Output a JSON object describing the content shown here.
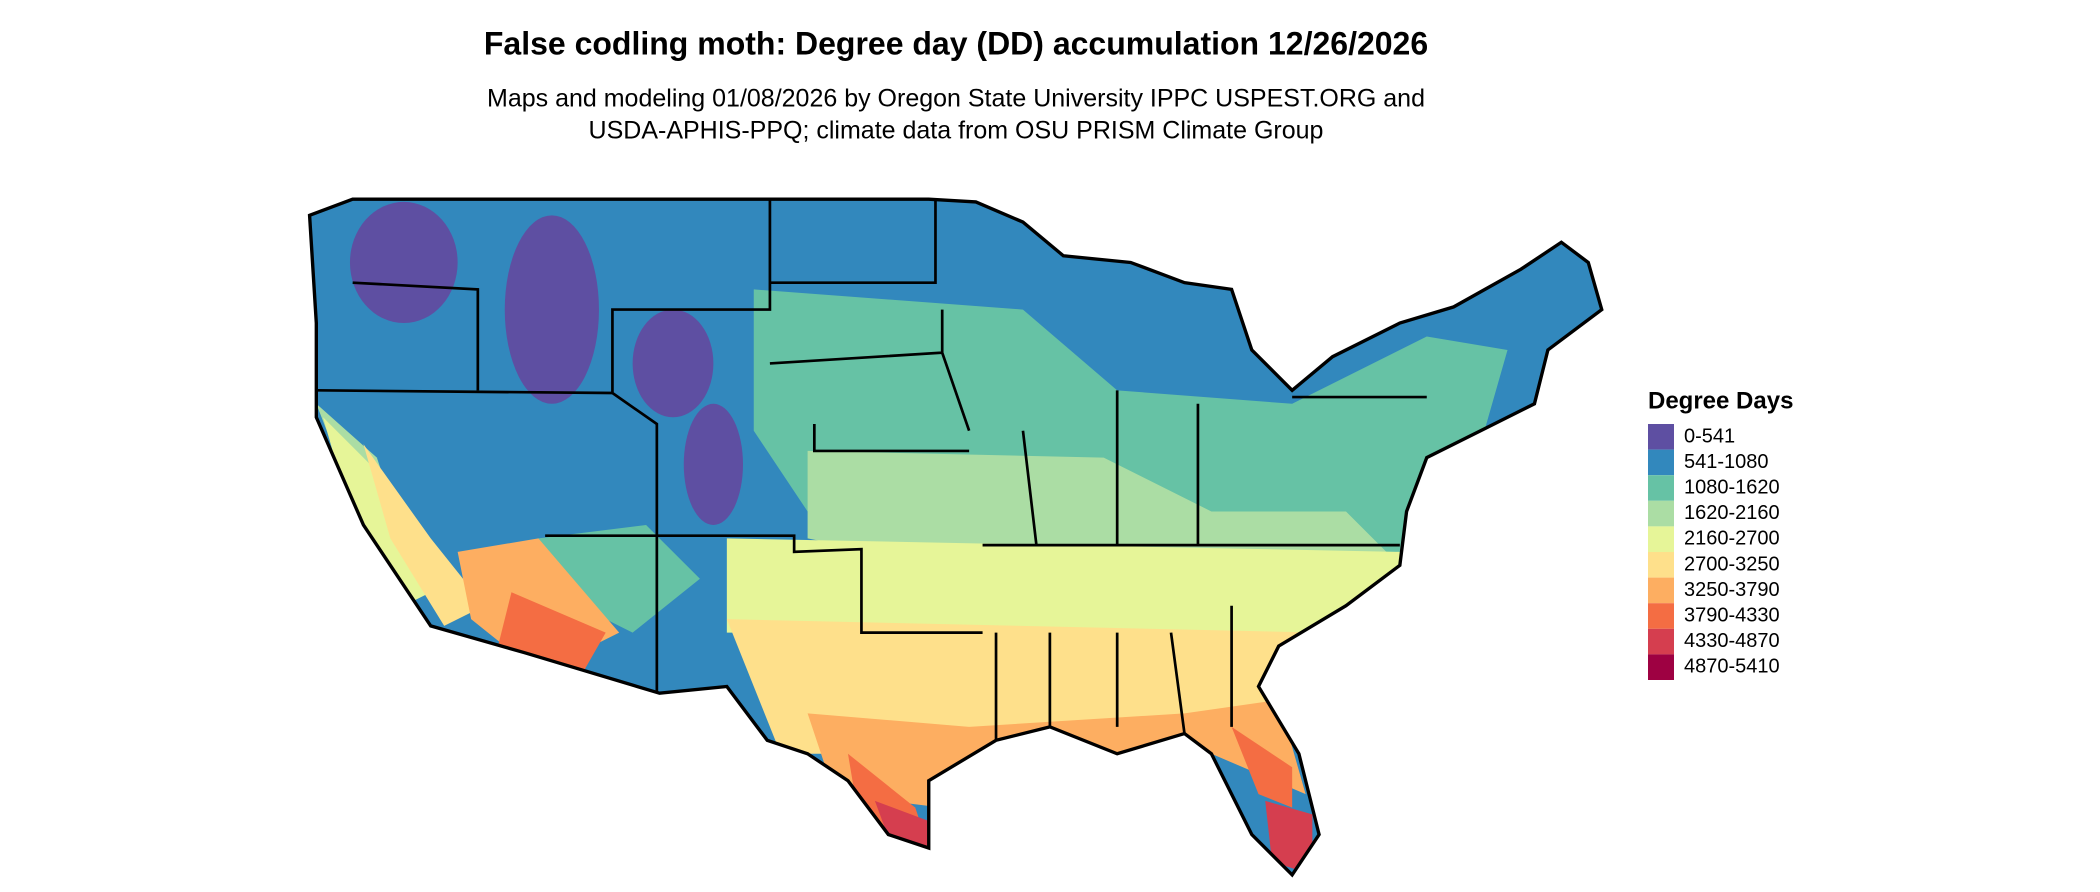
{
  "header": {
    "title": "False codling moth: Degree day (DD) accumulation 12/26/2026",
    "subtitle_lines": [
      "Maps and modeling 01/08/2026 by Oregon State University IPPC USPEST.ORG and",
      "USDA-APHIS-PPQ; climate data from OSU PRISM Climate Group"
    ]
  },
  "legend": {
    "title": "Degree Days",
    "items": [
      {
        "label": "0-541",
        "color": "#5e4fa2"
      },
      {
        "label": "541-1080",
        "color": "#3288bd"
      },
      {
        "label": "1080-1620",
        "color": "#66c2a5"
      },
      {
        "label": "1620-2160",
        "color": "#abdda4"
      },
      {
        "label": "2160-2700",
        "color": "#e6f598"
      },
      {
        "label": "2700-3250",
        "color": "#fee08b"
      },
      {
        "label": "3250-3790",
        "color": "#fdae61"
      },
      {
        "label": "3790-4330",
        "color": "#f46d43"
      },
      {
        "label": "4330-4870",
        "color": "#d53e4f"
      },
      {
        "label": "4870-5410",
        "color": "#9e0142"
      }
    ]
  }
}
